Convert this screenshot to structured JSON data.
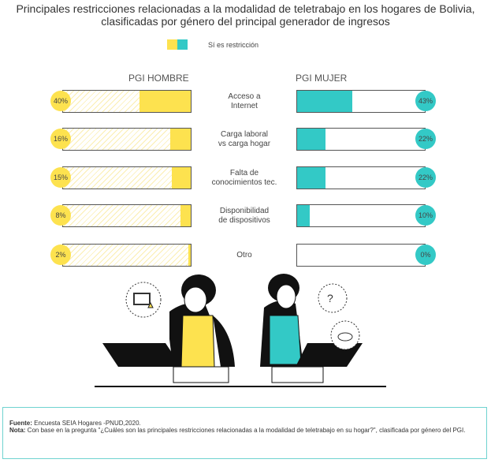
{
  "title_line1": "Principales restricciones relacionadas a la modalidad de teletrabajo en los hogares de Bolivia,",
  "title_line2": "clasificadas por género del principal generador de ingresos",
  "legend": {
    "label": "Sí es restricción"
  },
  "colors": {
    "hombre": "#fde24f",
    "mujer": "#33c9c6"
  },
  "chart_data": {
    "type": "bar",
    "title": "Principales restricciones relacionadas a la modalidad de teletrabajo en los hogares de Bolivia, clasificadas por género del principal generador de ingresos",
    "categories": [
      [
        "Acceso a",
        "Internet"
      ],
      [
        "Carga laboral",
        "vs carga hogar"
      ],
      [
        "Falta de",
        "conocimientos tec."
      ],
      [
        "Disponibilidad",
        "de dispositivos"
      ],
      [
        "Otro",
        ""
      ]
    ],
    "series": [
      {
        "name": "PGI HOMBRE",
        "values": [
          40,
          16,
          15,
          8,
          2
        ],
        "labels": [
          "40%",
          "16%",
          "15%",
          "8%",
          "2%"
        ]
      },
      {
        "name": "PGI MUJER",
        "values": [
          43,
          22,
          22,
          10,
          0
        ],
        "labels": [
          "43%",
          "22%",
          "22%",
          "10%",
          "0%"
        ]
      }
    ],
    "ylim": [
      0,
      100
    ],
    "legend": "top-center"
  },
  "footer": {
    "fuente_label": "Fuente:",
    "fuente": " Encuesta SEIA Hogares -PNUD,2020.",
    "nota_label": "Nota:",
    "nota": " Con base en la pregunta \"¿Cuáles son las principales restricciones relacionadas a la modalidad de teletrabajo en su hogar?\", clasificada por género del PGI."
  }
}
